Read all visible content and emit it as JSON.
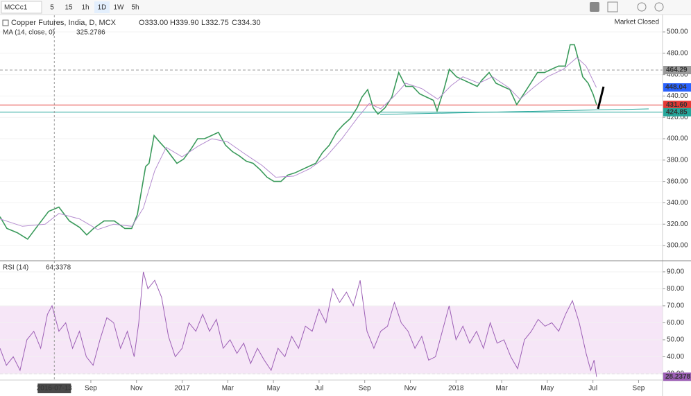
{
  "toolbar": {
    "symbol": "MCCc1",
    "intervals": [
      "5",
      "15",
      "1h",
      "1D",
      "1W",
      "5h"
    ]
  },
  "chart_data": [
    {
      "type": "line",
      "ohlc": [
        "O333.00",
        "H339.90",
        "L332.75",
        "C334.30"
      ],
      "status": "Market Closed",
      "series": [
        {
          "name": "Copper Futures, India, D, MCX",
          "color": "#3a9a5b",
          "x": [
            4.02,
            4.32,
            4.78,
            5.23,
            5.69,
            6.15,
            6.6,
            7.06,
            7.51,
            7.82,
            8.12,
            8.58,
            9.03,
            9.49,
            9.79,
            10.04,
            10.25,
            10.4,
            10.55,
            10.77,
            11.01,
            11.31,
            11.77,
            12.07,
            12.38,
            12.68,
            12.98,
            13.29,
            13.59,
            13.9,
            14.2,
            14.5,
            14.81,
            15.11,
            15.42,
            15.72,
            16.02,
            16.33,
            16.63,
            16.94,
            17.24,
            17.54,
            17.85,
            18.15,
            18.45,
            18.76,
            19.06,
            19.37,
            19.67,
            19.88,
            20.13,
            20.37,
            20.58,
            20.89,
            21.19,
            21.49,
            21.8,
            22.1,
            22.41,
            22.71,
            23.01,
            23.17,
            23.47,
            23.71,
            24.02,
            24.32,
            24.63,
            24.93,
            25.14,
            25.45,
            25.75,
            26.05,
            26.36,
            26.66,
            26.97,
            27.27,
            27.57,
            27.88,
            28.18,
            28.49,
            28.79,
            29.0,
            29.19,
            29.4,
            29.55,
            29.79,
            30.0,
            30.16
          ],
          "values": [
            327,
            316,
            312,
            306,
            319,
            332,
            336,
            323,
            317,
            310,
            316,
            323,
            323,
            316,
            316,
            329,
            355,
            374,
            377,
            403,
            397,
            390,
            377,
            381,
            390,
            400,
            400,
            403,
            406,
            394,
            388,
            384,
            379,
            377,
            371,
            364,
            360,
            360,
            366,
            368,
            371,
            374,
            377,
            387,
            394,
            406,
            413,
            419,
            429,
            439,
            446,
            429,
            423,
            429,
            439,
            462,
            449,
            449,
            442,
            439,
            436,
            426,
            446,
            465,
            458,
            455,
            452,
            449,
            455,
            462,
            452,
            449,
            446,
            432,
            442,
            452,
            462,
            462,
            465,
            468,
            468,
            488,
            488,
            471,
            458,
            452,
            442,
            432
          ]
        },
        {
          "name": "MA (14, close, 0)",
          "value_text": "325.2786",
          "color": "#b48ccf",
          "x": [
            4.02,
            5.0,
            6.0,
            6.6,
            7.5,
            8.3,
            9.0,
            9.8,
            10.3,
            10.8,
            11.3,
            12.0,
            12.7,
            13.3,
            14.0,
            14.8,
            15.5,
            16.1,
            16.9,
            17.6,
            18.3,
            19.0,
            19.7,
            20.2,
            20.7,
            21.3,
            21.8,
            22.5,
            23.2,
            23.8,
            24.3,
            25.0,
            25.6,
            26.3,
            26.8,
            27.4,
            28.0,
            28.7,
            29.3,
            29.7,
            30.15
          ],
          "values": [
            325,
            318,
            320,
            330,
            325,
            315,
            320,
            318,
            335,
            370,
            392,
            383,
            393,
            400,
            397,
            385,
            375,
            364,
            365,
            372,
            383,
            400,
            420,
            433,
            428,
            440,
            452,
            447,
            437,
            450,
            458,
            452,
            458,
            448,
            437,
            448,
            458,
            465,
            476,
            468,
            448.04
          ],
          "tag_color": "#2962ff"
        }
      ],
      "hlines": [
        {
          "value": 464.29,
          "color": "#999999",
          "dash": true
        },
        {
          "value": 431.6,
          "label": "431.60",
          "color": "#e53935"
        },
        {
          "value": 424.85,
          "color": "#26a69a"
        }
      ],
      "xlim": [
        4.02,
        33.05
      ],
      "xticks": [
        {
          "value": 8,
          "label": "Sep"
        },
        {
          "value": 10,
          "label": "Nov"
        },
        {
          "value": 12,
          "label": "2017"
        },
        {
          "value": 14,
          "label": "Mar"
        },
        {
          "value": 16,
          "label": "May"
        },
        {
          "value": 18,
          "label": "Jul"
        },
        {
          "value": 20,
          "label": "Sep"
        },
        {
          "value": 22,
          "label": "Nov"
        },
        {
          "value": 24,
          "label": "2018"
        },
        {
          "value": 26,
          "label": "Mar"
        },
        {
          "value": 28,
          "label": "May"
        },
        {
          "value": 30,
          "label": "Jul"
        },
        {
          "value": 32,
          "label": "Sep"
        }
      ],
      "crosshair": {
        "value": 6.4,
        "label": "2016-07-13"
      },
      "ylim": [
        286.4,
        515.6
      ],
      "yticks": [
        {
          "value": 300,
          "label": "300.00"
        },
        {
          "value": 320,
          "label": "320.00"
        },
        {
          "value": 340,
          "label": "340.00"
        },
        {
          "value": 360,
          "label": "360.00"
        },
        {
          "value": 380,
          "label": "380.00"
        },
        {
          "value": 400,
          "label": "400.00"
        },
        {
          "value": 420,
          "label": "420.00"
        },
        {
          "value": 440,
          "label": "440.00"
        },
        {
          "value": 460,
          "label": "460.00"
        },
        {
          "value": 480,
          "label": "480.00"
        },
        {
          "value": 500,
          "label": "500.00"
        }
      ]
    },
    {
      "type": "line",
      "series": [
        {
          "name": "RSI (14)",
          "value_text": "64.3378",
          "color": "#9c5fb5",
          "tag_color": "#9c5fb5",
          "x": [
            4.02,
            4.3,
            4.6,
            4.9,
            5.2,
            5.5,
            5.8,
            6.1,
            6.3,
            6.6,
            6.9,
            7.2,
            7.5,
            7.8,
            8.1,
            8.4,
            8.7,
            9.0,
            9.3,
            9.6,
            9.9,
            10.1,
            10.3,
            10.5,
            10.8,
            11.1,
            11.4,
            11.7,
            12.0,
            12.3,
            12.6,
            12.9,
            13.2,
            13.5,
            13.8,
            14.1,
            14.4,
            14.7,
            15.0,
            15.3,
            15.6,
            15.9,
            16.2,
            16.5,
            16.8,
            17.1,
            17.4,
            17.7,
            18.0,
            18.3,
            18.6,
            18.9,
            19.2,
            19.5,
            19.8,
            20.1,
            20.4,
            20.7,
            21.0,
            21.3,
            21.6,
            21.9,
            22.2,
            22.5,
            22.8,
            23.1,
            23.4,
            23.7,
            24.0,
            24.3,
            24.6,
            24.9,
            25.2,
            25.5,
            25.8,
            26.1,
            26.4,
            26.7,
            27.0,
            27.3,
            27.6,
            27.9,
            28.2,
            28.5,
            28.8,
            29.1,
            29.4,
            29.7,
            29.9,
            30.05,
            30.16
          ],
          "values": [
            45,
            35,
            40,
            32,
            50,
            55,
            45,
            65,
            70,
            55,
            60,
            45,
            55,
            40,
            35,
            50,
            63,
            60,
            45,
            55,
            40,
            60,
            90,
            80,
            85,
            75,
            52,
            40,
            45,
            60,
            55,
            65,
            55,
            62,
            45,
            50,
            42,
            48,
            36,
            45,
            38,
            32,
            45,
            40,
            52,
            45,
            58,
            55,
            68,
            60,
            80,
            72,
            78,
            70,
            85,
            55,
            45,
            55,
            58,
            72,
            60,
            55,
            45,
            52,
            38,
            40,
            55,
            70,
            50,
            58,
            48,
            55,
            45,
            60,
            48,
            50,
            40,
            33,
            50,
            55,
            62,
            58,
            60,
            55,
            65,
            73,
            60,
            42,
            32,
            38,
            28.2378
          ]
        }
      ],
      "band": [
        30,
        70
      ],
      "ylim": [
        26.3,
        96.1
      ],
      "yticks": [
        {
          "value": 30,
          "label": "30.00"
        },
        {
          "value": 40,
          "label": "40.00"
        },
        {
          "value": 50,
          "label": "50.00"
        },
        {
          "value": 60,
          "label": "60.00"
        },
        {
          "value": 70,
          "label": "70.00"
        },
        {
          "value": 80,
          "label": "80.00"
        },
        {
          "value": 90,
          "label": "90.00"
        }
      ]
    }
  ]
}
